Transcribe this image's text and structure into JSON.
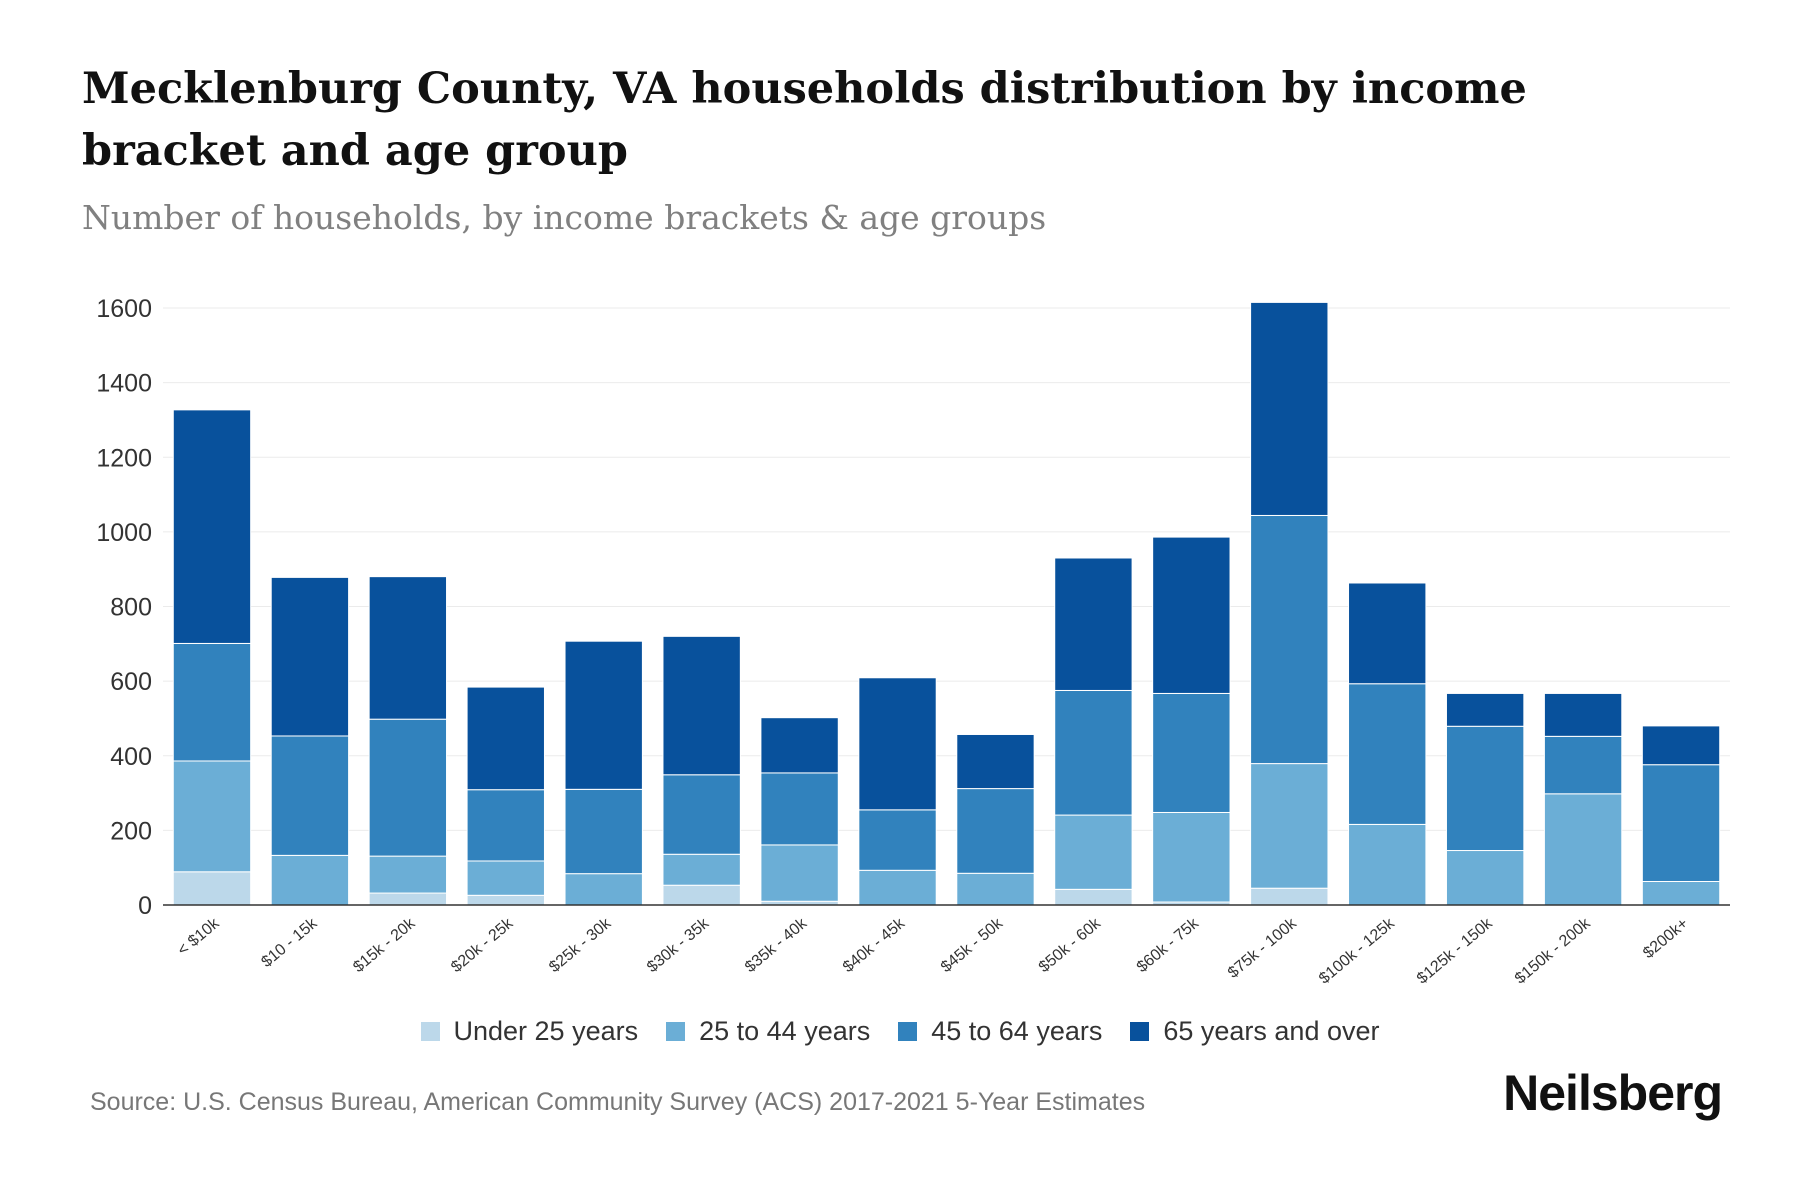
{
  "header": {
    "title": "Mecklenburg County, VA households distribution by income bracket and age group",
    "subtitle": "Number of households, by income brackets & age groups"
  },
  "footer": {
    "source": "Source: U.S. Census Bureau, American Community Survey (ACS) 2017-2021 5-Year Estimates",
    "brand": "Neilsberg"
  },
  "chart_data": {
    "type": "bar",
    "stacked": true,
    "categories": [
      "< $10k",
      "$10 - 15k",
      "$15k - 20k",
      "$20k - 25k",
      "$25k - 30k",
      "$30k - 35k",
      "$35k - 40k",
      "$40k - 45k",
      "$45k - 50k",
      "$50k - 60k",
      "$60k - 75k",
      "$75k - 100k",
      "$100k - 125k",
      "$125k - 150k",
      "$150k - 200k",
      "$200k+"
    ],
    "series": [
      {
        "name": "Under 25 years",
        "color": "#bcd8ea",
        "values": [
          89,
          0,
          32,
          26,
          0,
          53,
          10,
          0,
          0,
          42,
          8,
          45,
          0,
          0,
          0,
          0
        ]
      },
      {
        "name": "25 to 44 years",
        "color": "#6baed6",
        "values": [
          297,
          133,
          99,
          92,
          84,
          83,
          151,
          93,
          85,
          199,
          240,
          334,
          216,
          146,
          298,
          63
        ]
      },
      {
        "name": "45 to 64 years",
        "color": "#3182bd",
        "values": [
          315,
          320,
          367,
          191,
          226,
          213,
          193,
          162,
          227,
          334,
          319,
          665,
          377,
          333,
          154,
          313
        ]
      },
      {
        "name": "65 years and over",
        "color": "#08519c",
        "values": [
          626,
          425,
          382,
          275,
          397,
          371,
          148,
          354,
          145,
          355,
          419,
          571,
          270,
          88,
          115,
          104
        ]
      }
    ],
    "ylim": [
      0,
      1600
    ],
    "yticks": [
      0,
      200,
      400,
      600,
      800,
      1000,
      1200,
      1400,
      1600
    ],
    "grid": true,
    "legend_position": "bottom"
  }
}
